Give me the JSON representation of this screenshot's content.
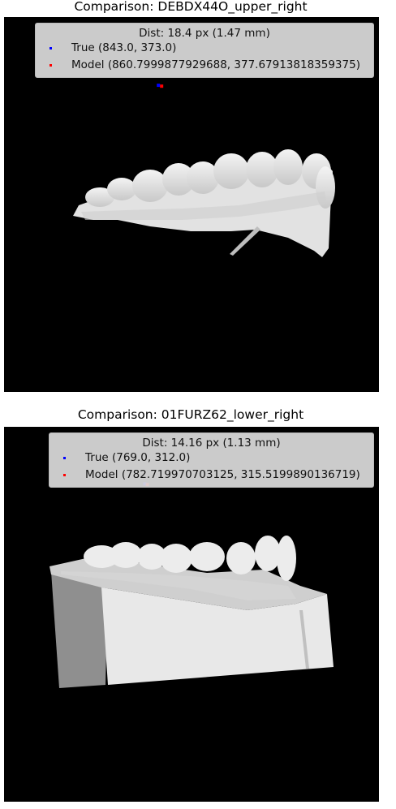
{
  "chart_data": [
    {
      "type": "scatter",
      "title": "Comparison: DEBDX44O_upper_right",
      "legend_title": "Dist: 18.4 px (1.47 mm)",
      "legend_placement": "top-right",
      "series": [
        {
          "name": "True (843.0, 373.0)",
          "color": "#0000ff",
          "x": [
            843.0
          ],
          "y": [
            373.0
          ]
        },
        {
          "name": "Model (860.7999877929688, 377.67913818359375)",
          "color": "#ff0000",
          "x": [
            860.7999877929688
          ],
          "y": [
            377.67913818359375
          ]
        }
      ]
    },
    {
      "type": "scatter",
      "title": "Comparison: 01FURZ62_lower_right",
      "legend_title": "Dist: 14.16 px (1.13 mm)",
      "legend_placement": "top-right",
      "series": [
        {
          "name": "True (769.0, 312.0)",
          "color": "#0000ff",
          "x": [
            769.0
          ],
          "y": [
            312.0
          ]
        },
        {
          "name": "Model (782.719970703125, 315.5199890136719)",
          "color": "#ff0000",
          "x": [
            782.719970703125
          ],
          "y": [
            315.5199890136719
          ]
        }
      ]
    }
  ]
}
